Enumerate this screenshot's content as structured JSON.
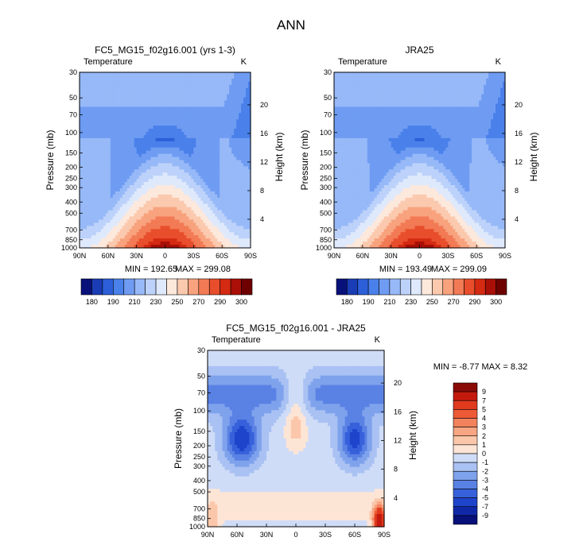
{
  "page": {
    "title": "ANN"
  },
  "chart_data": [
    {
      "type": "heatmap",
      "title": "FC5_MG15_f02g16.001 (yrs 1-3)",
      "subtitle_left": "Temperature",
      "units": "K",
      "xlabel": "",
      "ylabel": "Pressure (mb)",
      "ylabel_right": "Height (km)",
      "x_ticks": [
        "90N",
        "60N",
        "30N",
        "0",
        "30S",
        "60S",
        "90S"
      ],
      "y_ticks": [
        30,
        50,
        70,
        100,
        150,
        200,
        250,
        300,
        400,
        500,
        700,
        850,
        1000
      ],
      "height_ticks": [
        4,
        8,
        12,
        16,
        20
      ],
      "min_label": "MIN = 192.65",
      "max_label": "MAX = 299.08",
      "min": 192.65,
      "max": 299.08,
      "colorbar": {
        "orientation": "horizontal",
        "labels": [
          "180",
          "190",
          "210",
          "230",
          "250",
          "270",
          "290",
          "300"
        ],
        "colors": [
          "#08107a",
          "#1a3cb5",
          "#2c5fd8",
          "#4a80ea",
          "#6f9cf2",
          "#97b9f8",
          "#bdd2fa",
          "#dfe9fc",
          "#fde8dc",
          "#fbc9ae",
          "#f8a27e",
          "#f27a54",
          "#e84e2c",
          "#d42a12",
          "#a90f06",
          "#6e0000"
        ]
      }
    },
    {
      "type": "heatmap",
      "title": "JRA25",
      "subtitle_left": "Temperature",
      "units": "K",
      "ylabel": "Pressure (mb)",
      "ylabel_right": "Height (km)",
      "x_ticks": [
        "90N",
        "60N",
        "30N",
        "0",
        "30S",
        "60S",
        "90S"
      ],
      "y_ticks": [
        30,
        50,
        70,
        100,
        150,
        200,
        250,
        300,
        400,
        500,
        700,
        850,
        1000
      ],
      "height_ticks": [
        4,
        8,
        12,
        16,
        20
      ],
      "min_label": "MIN = 193.49",
      "max_label": "MAX = 299.09",
      "min": 193.49,
      "max": 299.09,
      "colorbar": {
        "orientation": "horizontal",
        "labels": [
          "180",
          "190",
          "210",
          "230",
          "250",
          "270",
          "290",
          "300"
        ],
        "colors": [
          "#08107a",
          "#1a3cb5",
          "#2c5fd8",
          "#4a80ea",
          "#6f9cf2",
          "#97b9f8",
          "#bdd2fa",
          "#dfe9fc",
          "#fde8dc",
          "#fbc9ae",
          "#f8a27e",
          "#f27a54",
          "#e84e2c",
          "#d42a12",
          "#a90f06",
          "#6e0000"
        ]
      }
    },
    {
      "type": "heatmap",
      "title": "FC5_MG15_f02g16.001 - JRA25",
      "subtitle_left": "Temperature",
      "units": "K",
      "ylabel": "Pressure (mb)",
      "ylabel_right": "Height (km)",
      "x_ticks": [
        "90N",
        "60N",
        "30N",
        "0",
        "30S",
        "60S",
        "90S"
      ],
      "y_ticks": [
        30,
        50,
        70,
        100,
        150,
        200,
        250,
        300,
        400,
        500,
        700,
        850,
        1000
      ],
      "height_ticks": [
        4,
        8,
        12,
        16,
        20
      ],
      "minmax_label": "MIN =  -8.77   MAX =    8.32",
      "min": -8.77,
      "max": 8.32,
      "colorbar": {
        "orientation": "vertical",
        "labels": [
          "9",
          "7",
          "5",
          "4",
          "3",
          "2",
          "1",
          "0",
          "-1",
          "-2",
          "-3",
          "-4",
          "-5",
          "-7",
          "-9"
        ],
        "colors": [
          "#8a0a06",
          "#c41a0e",
          "#e03a1c",
          "#ec5a36",
          "#f2825c",
          "#f7a582",
          "#fbc7aa",
          "#fde5d6",
          "#cfdcf7",
          "#a9c1f3",
          "#7fa2ec",
          "#5a82e4",
          "#3761db",
          "#1f44cc",
          "#1028a8",
          "#08107a"
        ]
      }
    }
  ]
}
